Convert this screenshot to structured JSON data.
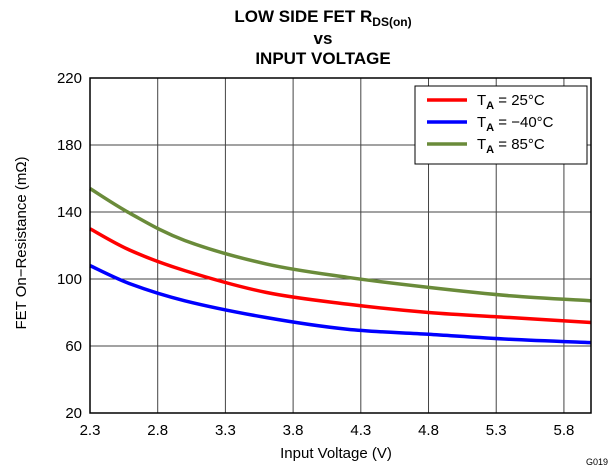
{
  "chart_data": {
    "type": "line",
    "title": {
      "line1_main": "LOW SIDE FET R",
      "line1_sub": "DS(on)",
      "line2": "vs",
      "line3": "INPUT VOLTAGE"
    },
    "xlabel": "Input Voltage (V)",
    "ylabel": "FET On−Resistance (mΩ)",
    "xlim": [
      2.3,
      6.0
    ],
    "ylim": [
      20,
      220
    ],
    "x_ticks": [
      "2.3",
      "2.8",
      "3.3",
      "3.8",
      "4.3",
      "4.8",
      "5.3",
      "5.8"
    ],
    "y_ticks": [
      "20",
      "60",
      "100",
      "140",
      "180",
      "220"
    ],
    "grid": true,
    "legend_placement": "top-right",
    "series": [
      {
        "legend_main": "T",
        "legend_sub": "A",
        "legend_value": " = 25°C",
        "color": "#ff0000",
        "x": [
          2.3,
          2.6,
          3.0,
          3.6,
          4.2,
          4.8,
          5.4,
          6.0
        ],
        "y": [
          130,
          117,
          105,
          92,
          85,
          80,
          77,
          74
        ]
      },
      {
        "legend_main": "T",
        "legend_sub": "A",
        "legend_value": " = −40°C",
        "color": "#0000ff",
        "x": [
          2.3,
          2.6,
          3.0,
          3.6,
          4.2,
          4.8,
          5.4,
          6.0
        ],
        "y": [
          108,
          97,
          87,
          77,
          70,
          67,
          64,
          62
        ]
      },
      {
        "legend_main": "T",
        "legend_sub": "A",
        "legend_value": " = 85°C",
        "color": "#6a8b3a",
        "x": [
          2.3,
          2.6,
          3.0,
          3.6,
          4.2,
          4.8,
          5.4,
          6.0
        ],
        "y": [
          154,
          139,
          123,
          109,
          101,
          95,
          90,
          87
        ]
      }
    ]
  },
  "corner_code": "G019"
}
